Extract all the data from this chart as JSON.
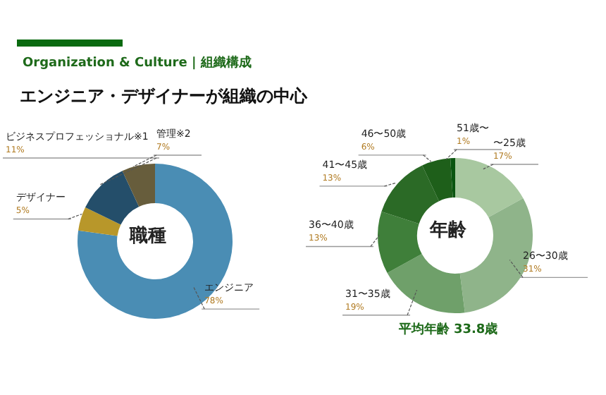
{
  "chart_data": [
    {
      "type": "donut",
      "subtitle": "Organization & Culture | 組織構成",
      "title": "エンジニア・デザイナーが組織の中心",
      "annotations": [
        "職種"
      ],
      "categories": [
        "エンジニア",
        "デザイナー",
        "ビジネスプロフェッショナル※1",
        "管理※2"
      ],
      "values": [
        78,
        5,
        11,
        7
      ],
      "value_labels": [
        "78%",
        "5%",
        "11%",
        "7%"
      ],
      "colors": [
        "#4a8db4",
        "#b8972a",
        "#244e6a",
        "#675d3c"
      ]
    },
    {
      "type": "donut",
      "annotations": [
        "年齢",
        "平均年齢 33.8歳"
      ],
      "categories": [
        "〜25歳",
        "26〜30歳",
        "31〜35歳",
        "36〜40歳",
        "41〜45歳",
        "46〜50歳",
        "51歳〜"
      ],
      "values": [
        17,
        31,
        19,
        13,
        13,
        6,
        1
      ],
      "value_labels": [
        "17%",
        "31%",
        "19%",
        "13%",
        "13%",
        "6%",
        "1%"
      ],
      "colors": [
        "#a8c8a0",
        "#8fb48a",
        "#6fa06a",
        "#3f7f3a",
        "#2b6a26",
        "#1e5f1a",
        "#0a5510"
      ]
    }
  ]
}
